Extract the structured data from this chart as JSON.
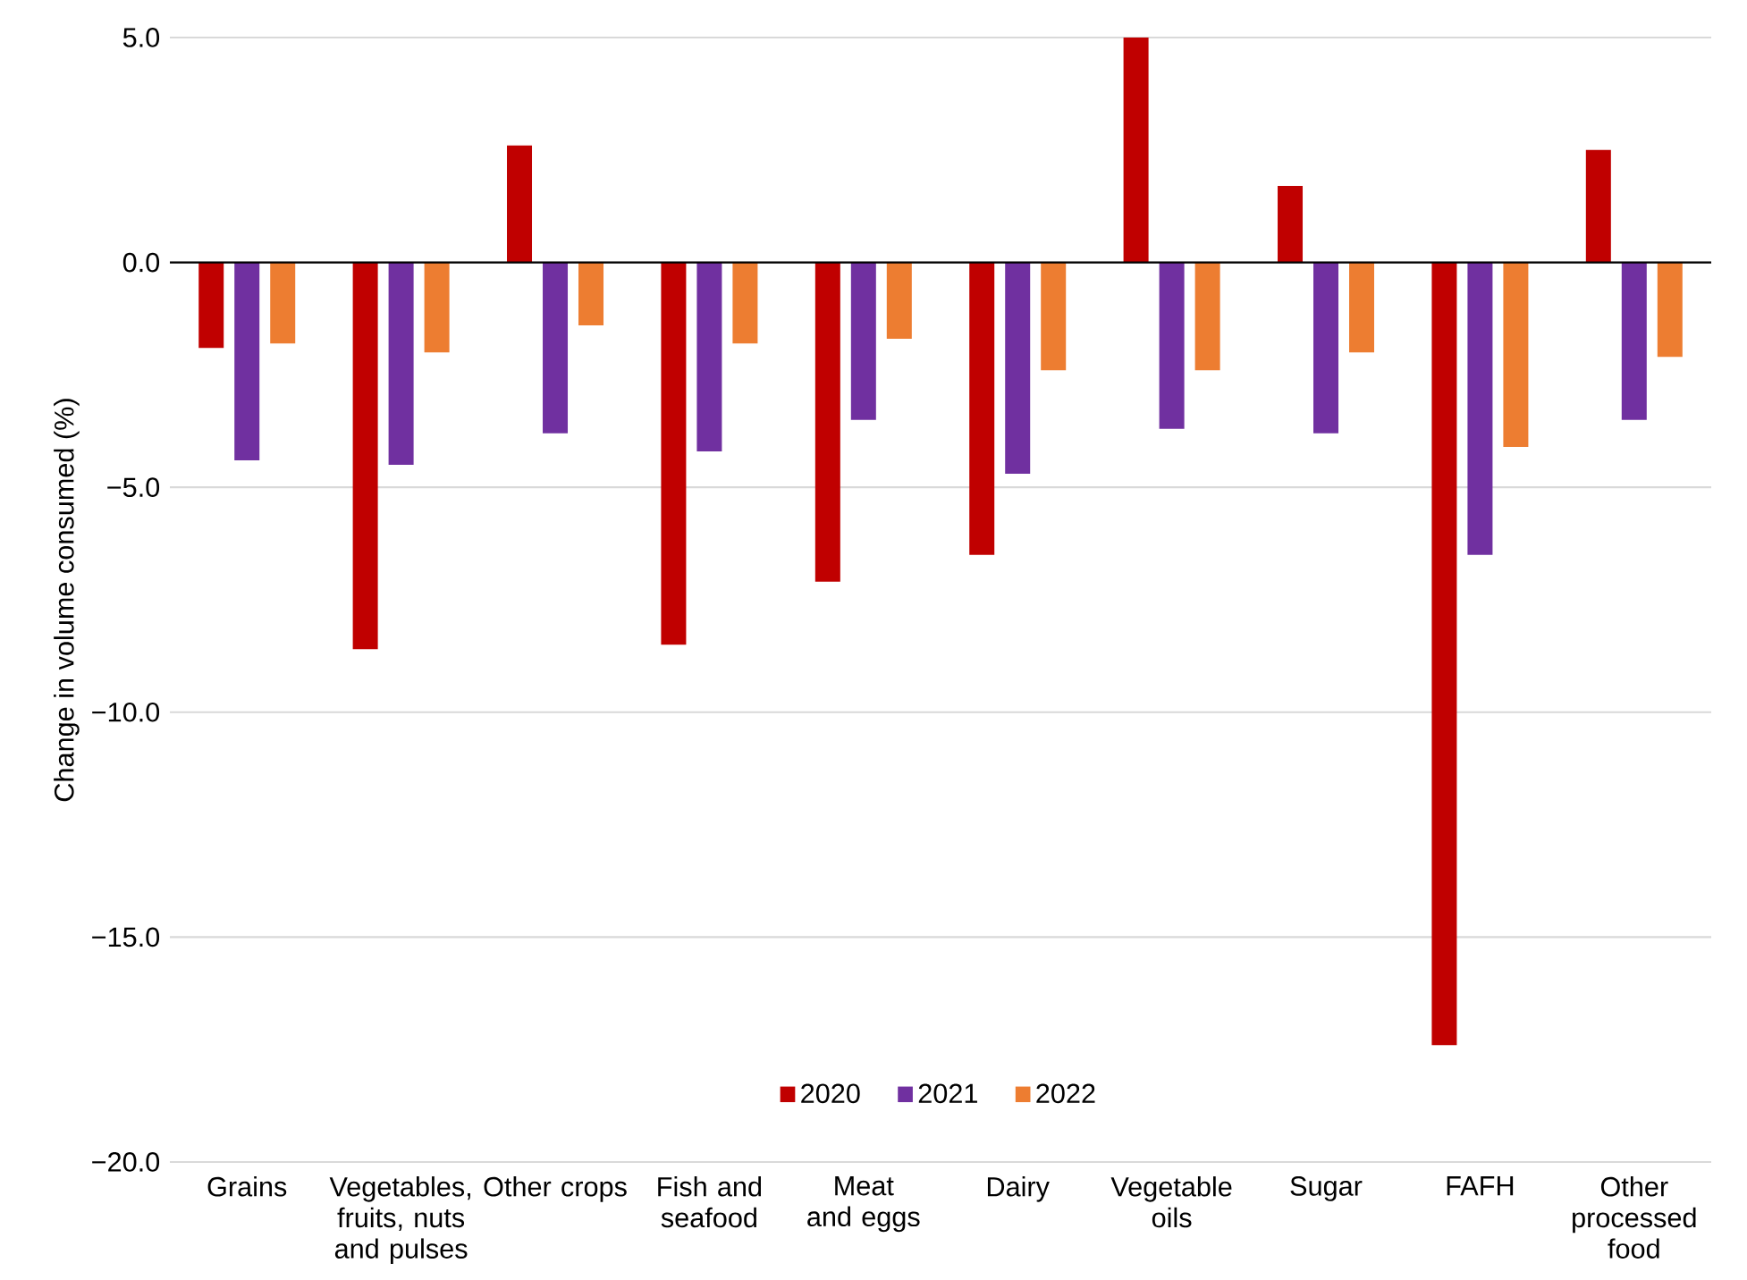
{
  "chart_data": {
    "type": "bar",
    "ylabel": "Change in volume consumed (%)",
    "categories": [
      "Grains",
      "Vegetables, fruits, nuts and pulses",
      "Other crops",
      "Fish and seafood",
      "Meat and eggs",
      "Dairy",
      "Vegetable oils",
      "Sugar",
      "FAFH",
      "Other processed food"
    ],
    "series": [
      {
        "name": "2020",
        "color": "#c00000",
        "values": [
          -1.9,
          -8.6,
          2.6,
          -8.5,
          -7.1,
          -6.5,
          5.0,
          1.7,
          -17.4,
          2.5
        ]
      },
      {
        "name": "2021",
        "color": "#7030a0",
        "values": [
          -4.4,
          -4.5,
          -3.8,
          -4.2,
          -3.5,
          -4.7,
          -3.7,
          -3.8,
          -6.5,
          -3.5
        ]
      },
      {
        "name": "2022",
        "color": "#ed7d31",
        "values": [
          -1.8,
          -2.0,
          -1.4,
          -1.8,
          -1.7,
          -2.4,
          -2.4,
          -2.0,
          -4.1,
          -2.1
        ]
      }
    ],
    "ylim": [
      -20,
      5
    ],
    "yticks": [
      {
        "value": 5,
        "label": "5.0"
      },
      {
        "value": 0,
        "label": "0.0"
      },
      {
        "value": -5,
        "label": "−5.0"
      },
      {
        "value": -10,
        "label": "−10.0"
      },
      {
        "value": -15,
        "label": "−15.0"
      },
      {
        "value": -20,
        "label": "−20.0"
      }
    ],
    "grid": "y",
    "legend": "bottom"
  }
}
